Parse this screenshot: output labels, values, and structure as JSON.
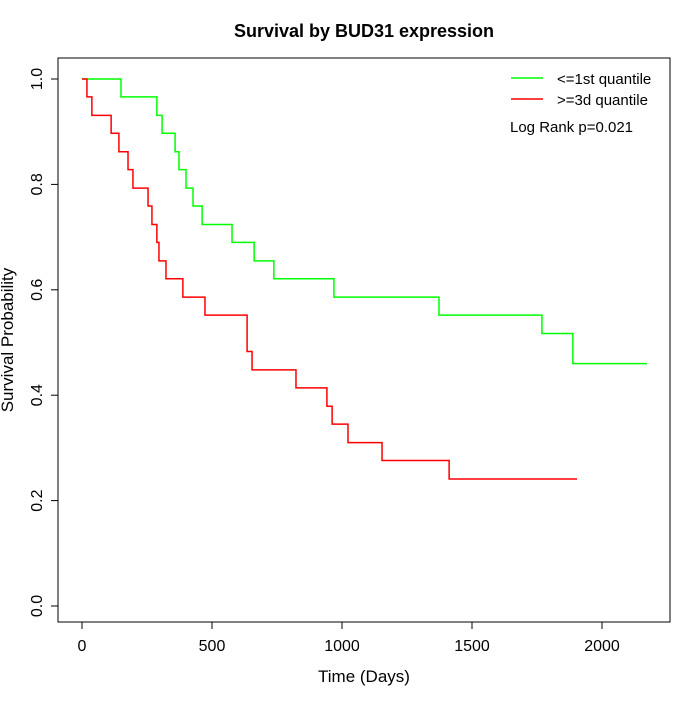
{
  "chart_data": {
    "type": "line",
    "subtype": "kaplan-meier step",
    "title": "Survival by BUD31 expression",
    "xlabel": "Time (Days)",
    "ylabel": "Survival Probability",
    "xlim": [
      -80,
      2250
    ],
    "ylim": [
      -0.03,
      1.03
    ],
    "xticks": [
      0,
      500,
      1000,
      1500,
      2000
    ],
    "yticks": [
      0.0,
      0.2,
      0.4,
      0.6,
      0.8,
      1.0
    ],
    "xtick_labels": [
      "0",
      "500",
      "1000",
      "1500",
      "2000"
    ],
    "ytick_labels": [
      "0.0",
      "0.2",
      "0.4",
      "0.6",
      "0.8",
      "1.0"
    ],
    "grid": false,
    "legend_position": "top-right",
    "annotation": "Log Rank p=0.021",
    "series": [
      {
        "name": "<=1st quantile",
        "color": "#00ff00",
        "times": [
          0,
          150,
          288,
          308,
          358,
          373,
          400,
          427,
          462,
          577,
          662,
          738,
          969,
          1373,
          1769,
          1888,
          2173
        ],
        "surv": [
          1.0,
          0.966,
          0.931,
          0.897,
          0.862,
          0.828,
          0.793,
          0.759,
          0.724,
          0.69,
          0.655,
          0.621,
          0.586,
          0.552,
          0.517,
          0.46,
          0.46
        ]
      },
      {
        "name": ">=3d quantile",
        "color": "#ff0000",
        "times": [
          0,
          19,
          38,
          112,
          142,
          177,
          196,
          254,
          269,
          288,
          296,
          323,
          388,
          473,
          635,
          654,
          823,
          942,
          962,
          1023,
          1154,
          1412,
          1904
        ],
        "surv": [
          1.0,
          0.966,
          0.931,
          0.897,
          0.862,
          0.828,
          0.793,
          0.759,
          0.724,
          0.69,
          0.655,
          0.621,
          0.586,
          0.552,
          0.483,
          0.448,
          0.414,
          0.379,
          0.345,
          0.31,
          0.276,
          0.241,
          0.241
        ]
      }
    ]
  }
}
